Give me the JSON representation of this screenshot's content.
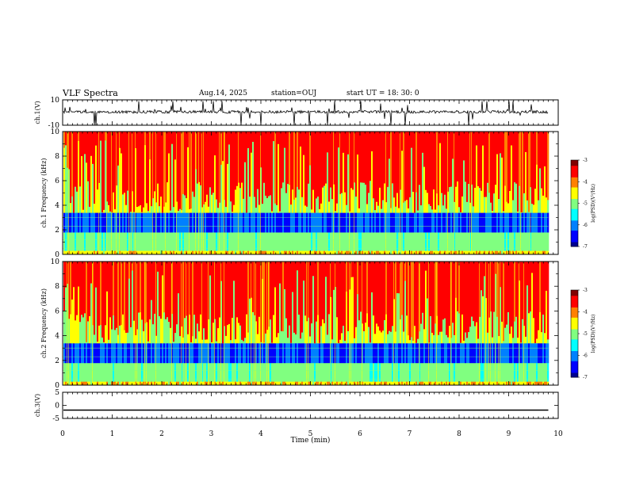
{
  "header": {
    "title": "VLF Spectra",
    "date": "Aug.14, 2025",
    "station": "station=OUJ",
    "start_ut": "start  UT =   18: 30: 0"
  },
  "colors": {
    "jet": [
      "#00008f",
      "#0000ff",
      "#0080ff",
      "#00ffff",
      "#80ff80",
      "#ffff00",
      "#ff8000",
      "#ff0000",
      "#800000"
    ],
    "trace": "#000000",
    "background": "#ffffff"
  },
  "chart_data": [
    {
      "id": "ch1_waveform",
      "type": "line",
      "ylabel": "ch.1(V)",
      "ylim": [
        -10,
        10
      ],
      "yticks": [
        "10",
        "-10"
      ],
      "trace_level": 0.5,
      "spike_range": [
        -10,
        10
      ]
    },
    {
      "id": "ch1_spectrogram",
      "type": "heatmap",
      "ylabel": "ch.1 Frequency  (kHz)",
      "ylim": [
        0,
        10
      ],
      "yticks": [
        "0",
        "2",
        "4",
        "6",
        "8",
        "10"
      ],
      "colorbar": {
        "label": "log(PSD)(V²/Hz)",
        "range": [
          -7,
          -3
        ],
        "ticks": [
          "-3",
          "-4",
          "-5",
          "-6",
          "-7"
        ]
      },
      "quiet_band_khz": [
        1.8,
        3.4
      ],
      "strong_band_khz": [
        0.3,
        1.8
      ]
    },
    {
      "id": "ch2_spectrogram",
      "type": "heatmap",
      "ylabel": "ch.2 Frequency  (kHz)",
      "ylim": [
        0,
        10
      ],
      "yticks": [
        "0",
        "2",
        "4",
        "6",
        "8",
        "10"
      ],
      "colorbar": {
        "label": "log(PSD)(V²/Hz)",
        "range": [
          -7,
          -3
        ],
        "ticks": [
          "-3",
          "-4",
          "-5",
          "-6",
          "-7"
        ]
      },
      "quiet_band_khz": [
        1.8,
        3.4
      ],
      "strong_band_khz": [
        0.3,
        1.8
      ]
    },
    {
      "id": "ch3_waveform",
      "type": "line",
      "ylabel": "ch.3(V)",
      "ylim": [
        -5,
        5
      ],
      "yticks": [
        "5",
        "0",
        "-5"
      ],
      "trace_level": -1.8
    }
  ],
  "xaxis": {
    "label": "Time  (min)",
    "range": [
      0,
      10
    ],
    "data_end": 9.8,
    "ticks": [
      "0",
      "1",
      "2",
      "3",
      "4",
      "5",
      "6",
      "7",
      "8",
      "9",
      "10"
    ]
  }
}
